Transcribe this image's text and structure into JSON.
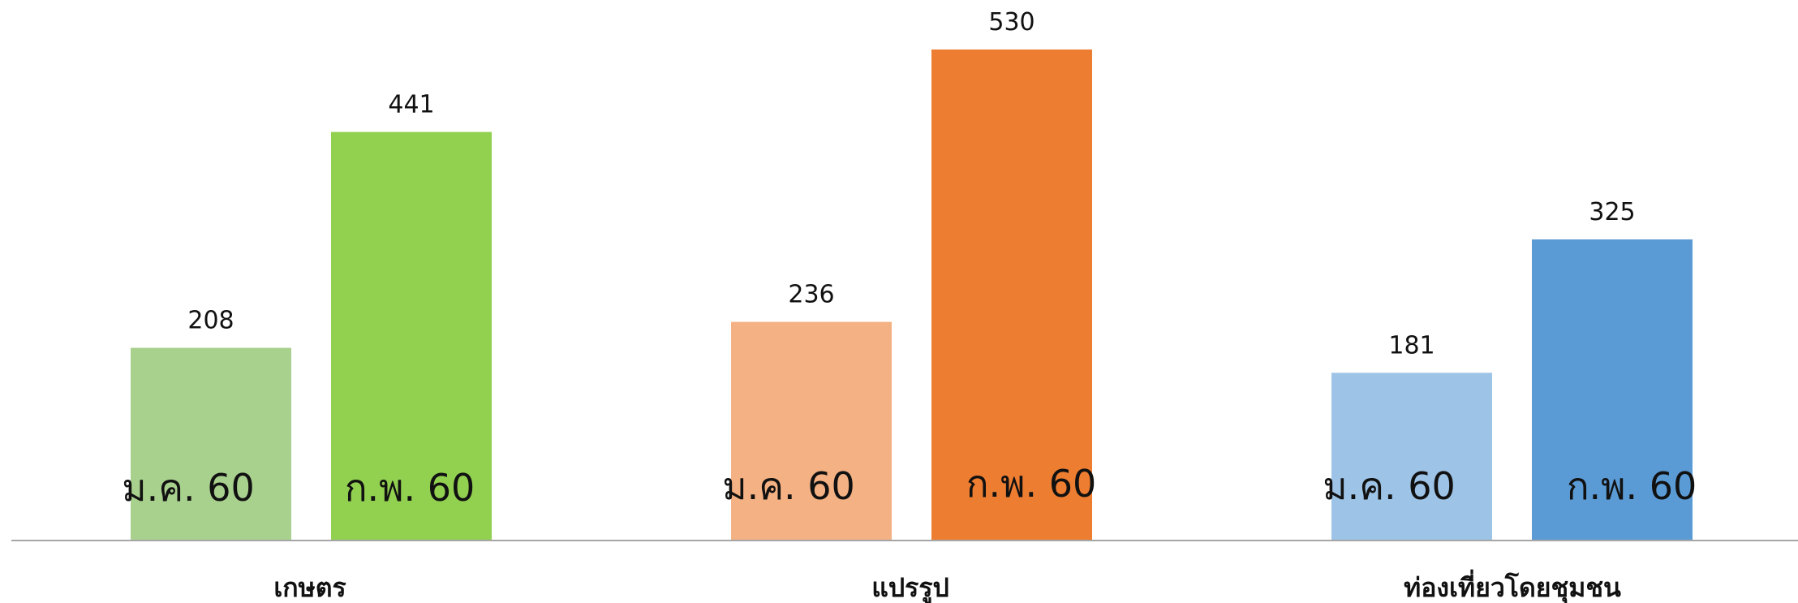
{
  "chart_data": {
    "type": "bar",
    "categories": [
      "เกษตร",
      "แปรรูป",
      "ท่องเที่ยวโดยชุมชน"
    ],
    "series": [
      {
        "name": "ม.ค. 60",
        "values": [
          208,
          236,
          181
        ],
        "colors": [
          "#a9d18e",
          "#f4b183",
          "#9dc3e6"
        ]
      },
      {
        "name": "ก.พ. 60",
        "values": [
          441,
          530,
          325
        ],
        "colors": [
          "#92d050",
          "#ed7d31",
          "#5b9bd5"
        ]
      }
    ],
    "ylim": [
      0,
      530
    ],
    "grid": false,
    "legend": "none",
    "axis_color": "#a6a6a6"
  }
}
